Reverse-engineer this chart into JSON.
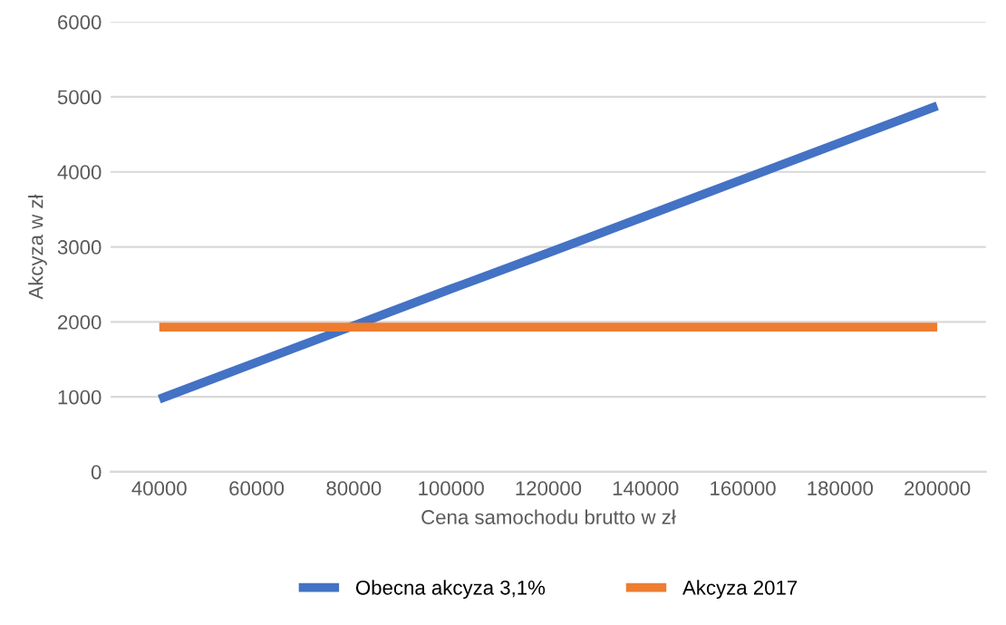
{
  "chart_data": {
    "type": "line",
    "xlabel": "Cena samochodu brutto w zł",
    "ylabel": "Akcyza w zł",
    "categories": [
      "40000",
      "60000",
      "80000",
      "100000",
      "120000",
      "140000",
      "160000",
      "180000",
      "200000"
    ],
    "series": [
      {
        "name": "Obecna akcyza 3,1%",
        "color": "#4472c4",
        "values": [
          970,
          1460,
          1950,
          2440,
          2920,
          3410,
          3900,
          4390,
          4880
        ]
      },
      {
        "name": "Akcyza 2017",
        "color": "#ed7d31",
        "values": [
          1930,
          1930,
          1930,
          1930,
          1930,
          1930,
          1930,
          1930,
          1930
        ]
      }
    ],
    "ylim": [
      0,
      6000
    ],
    "yticks": [
      0,
      1000,
      2000,
      3000,
      4000,
      5000,
      6000
    ],
    "grid": "y",
    "legend": "bottom",
    "marker": "none",
    "line_style": "solid"
  }
}
